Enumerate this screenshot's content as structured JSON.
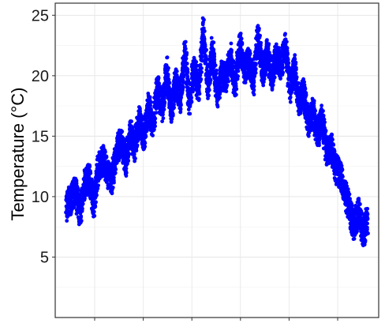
{
  "chart_data": {
    "type": "scatter",
    "title": "",
    "xlabel": "",
    "ylabel": "Temperature (°C)",
    "ylim": [
      0,
      26
    ],
    "y_ticks": [
      5,
      10,
      15,
      20,
      25
    ],
    "x_ticks_labeled": false,
    "x_tick_count": 7,
    "grid": true,
    "legend": "none",
    "point_color": "#0000ff",
    "series": [
      {
        "values": [
          {
            "x": 0,
            "y": 9.2
          },
          {
            "x": 1,
            "y": 9.8
          },
          {
            "x": 2,
            "y": 10.4
          },
          {
            "x": 3,
            "y": 8.7
          },
          {
            "x": 4,
            "y": 10.9
          },
          {
            "x": 5,
            "y": 11.6
          },
          {
            "x": 6,
            "y": 9.4
          },
          {
            "x": 7,
            "y": 12.3
          },
          {
            "x": 8,
            "y": 13.1
          },
          {
            "x": 9,
            "y": 12.0
          },
          {
            "x": 10,
            "y": 11.4
          },
          {
            "x": 11,
            "y": 13.8
          },
          {
            "x": 12,
            "y": 14.6
          },
          {
            "x": 13,
            "y": 12.9
          },
          {
            "x": 14,
            "y": 15.2
          },
          {
            "x": 15,
            "y": 14.1
          },
          {
            "x": 16,
            "y": 16.3
          },
          {
            "x": 17,
            "y": 15.0
          },
          {
            "x": 18,
            "y": 17.4
          },
          {
            "x": 19,
            "y": 16.1
          },
          {
            "x": 20,
            "y": 18.9
          },
          {
            "x": 21,
            "y": 17.2
          },
          {
            "x": 22,
            "y": 20.4
          },
          {
            "x": 23,
            "y": 16.8
          },
          {
            "x": 24,
            "y": 19.6
          },
          {
            "x": 25,
            "y": 18.0
          },
          {
            "x": 26,
            "y": 21.9
          },
          {
            "x": 27,
            "y": 17.6
          },
          {
            "x": 28,
            "y": 20.8
          },
          {
            "x": 29,
            "y": 18.7
          },
          {
            "x": 30,
            "y": 23.8
          },
          {
            "x": 31,
            "y": 19.3
          },
          {
            "x": 32,
            "y": 22.1
          },
          {
            "x": 33,
            "y": 18.5
          },
          {
            "x": 34,
            "y": 20.0
          },
          {
            "x": 35,
            "y": 19.8
          },
          {
            "x": 36,
            "y": 21.6
          },
          {
            "x": 37,
            "y": 19.1
          },
          {
            "x": 38,
            "y": 22.6
          },
          {
            "x": 39,
            "y": 20.5
          },
          {
            "x": 40,
            "y": 21.2
          },
          {
            "x": 41,
            "y": 19.5
          },
          {
            "x": 42,
            "y": 23.4
          },
          {
            "x": 43,
            "y": 20.2
          },
          {
            "x": 44,
            "y": 22.0
          },
          {
            "x": 45,
            "y": 19.9
          },
          {
            "x": 46,
            "y": 21.5
          },
          {
            "x": 47,
            "y": 20.8
          },
          {
            "x": 48,
            "y": 22.7
          },
          {
            "x": 49,
            "y": 19.0
          },
          {
            "x": 50,
            "y": 20.6
          },
          {
            "x": 51,
            "y": 17.8
          },
          {
            "x": 52,
            "y": 18.6
          },
          {
            "x": 53,
            "y": 16.2
          },
          {
            "x": 54,
            "y": 17.0
          },
          {
            "x": 55,
            "y": 15.1
          },
          {
            "x": 56,
            "y": 16.4
          },
          {
            "x": 57,
            "y": 13.6
          },
          {
            "x": 58,
            "y": 14.2
          },
          {
            "x": 59,
            "y": 12.3
          },
          {
            "x": 60,
            "y": 11.8
          },
          {
            "x": 61,
            "y": 10.4
          },
          {
            "x": 62,
            "y": 9.1
          },
          {
            "x": 63,
            "y": 7.5
          },
          {
            "x": 64,
            "y": 8.8
          },
          {
            "x": 65,
            "y": 6.9
          },
          {
            "x": 66,
            "y": 8.2
          }
        ]
      }
    ]
  }
}
